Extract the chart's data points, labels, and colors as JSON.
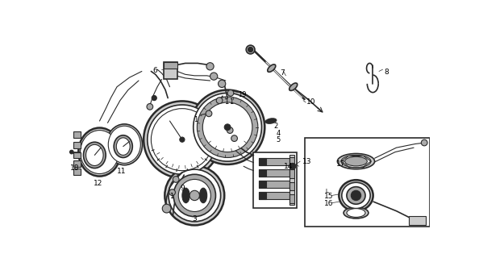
{
  "bg_color": "#ffffff",
  "line_color": "#1a1a1a",
  "fig_width": 5.94,
  "fig_height": 3.2,
  "dpi": 100,
  "gray_dark": "#2a2a2a",
  "gray_med": "#555555",
  "gray_light": "#aaaaaa",
  "gray_fill": "#888888",
  "gray_light2": "#cccccc"
}
